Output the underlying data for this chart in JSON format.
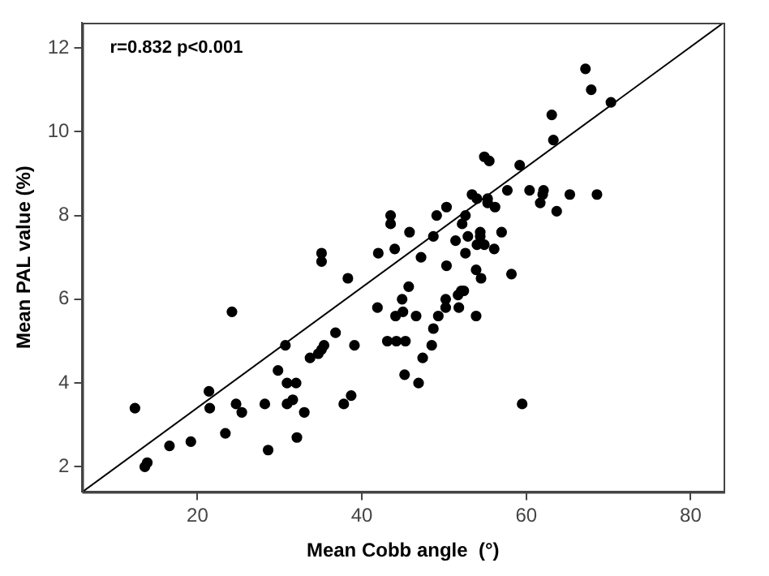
{
  "chart_data": {
    "type": "scatter",
    "xlabel": "Mean Cobb angle  (°)",
    "ylabel": "Mean PAL value (%)",
    "annotations": [
      "r=0.832 p<0.001"
    ],
    "xlim": [
      6,
      84
    ],
    "ylim": [
      1.4,
      12.6
    ],
    "xticks": [
      20,
      40,
      60,
      80
    ],
    "yticks": [
      2,
      4,
      6,
      8,
      10,
      12
    ],
    "grid": false,
    "legend": false,
    "marker": "circle",
    "series": [
      {
        "color": "#000000",
        "x": [
          12.4,
          13.6,
          13.9,
          16.6,
          19.2,
          21.4,
          21.5,
          24.2,
          23.4,
          24.7,
          25.4,
          28.2,
          28.6,
          29.8,
          30.7,
          30.9,
          32.0,
          30.9,
          31.6,
          32.1,
          33.0,
          33.7,
          34.7,
          35.1,
          35.4,
          36.8,
          37.8,
          38.7,
          39.1,
          38.3,
          41.9,
          43.1,
          44.2,
          45.3,
          44.1,
          44.9,
          45.0,
          45.7,
          46.6,
          45.2,
          46.9,
          47.4,
          48.5,
          48.7,
          49.3,
          50.2,
          50.2,
          50.3,
          51.7,
          52.1,
          52.4,
          51.8,
          53.9,
          53.9,
          54.5,
          58.2,
          59.5,
          67.2,
          67.9,
          70.3,
          63.1,
          63.3,
          54.9,
          55.5,
          59.2,
          57.7,
          60.4,
          62.1,
          62.0,
          61.7,
          63.7,
          65.3,
          68.6,
          53.4,
          54.0,
          55.3,
          55.3,
          56.2,
          52.6,
          50.3,
          49.1,
          52.2,
          57.0,
          54.4,
          54.4,
          52.9,
          51.4,
          48.7,
          45.8,
          43.5,
          43.5,
          44.0,
          42.0,
          47.2,
          52.6,
          54.0,
          54.9,
          56.1,
          35.1,
          35.1
        ],
        "values": [
          3.4,
          2.0,
          2.1,
          2.5,
          2.6,
          3.8,
          3.4,
          5.7,
          2.8,
          3.5,
          3.3,
          3.5,
          2.4,
          4.3,
          4.9,
          4.0,
          4.0,
          3.5,
          3.6,
          2.7,
          3.3,
          4.6,
          4.7,
          4.8,
          4.9,
          5.2,
          3.5,
          3.7,
          4.9,
          6.5,
          5.8,
          5.0,
          5.0,
          5.0,
          5.6,
          6.0,
          5.7,
          6.3,
          5.6,
          4.2,
          4.0,
          4.6,
          4.9,
          5.3,
          5.6,
          6.0,
          5.8,
          6.8,
          6.1,
          6.2,
          6.2,
          5.8,
          5.6,
          6.7,
          6.5,
          6.6,
          3.5,
          11.5,
          11.0,
          10.7,
          10.4,
          9.8,
          9.4,
          9.3,
          9.2,
          8.6,
          8.6,
          8.6,
          8.5,
          8.3,
          8.1,
          8.5,
          8.5,
          8.5,
          8.4,
          8.4,
          8.3,
          8.2,
          8.0,
          8.2,
          8.0,
          7.8,
          7.6,
          7.6,
          7.5,
          7.5,
          7.4,
          7.5,
          7.6,
          8.0,
          7.8,
          7.2,
          7.1,
          7.0,
          7.1,
          7.3,
          7.3,
          7.2,
          7.1,
          6.9
        ]
      },
      {
        "type": "line",
        "marker": "none",
        "color": "#000000",
        "x": [
          6,
          84
        ],
        "values": [
          1.4,
          12.6
        ]
      }
    ]
  }
}
